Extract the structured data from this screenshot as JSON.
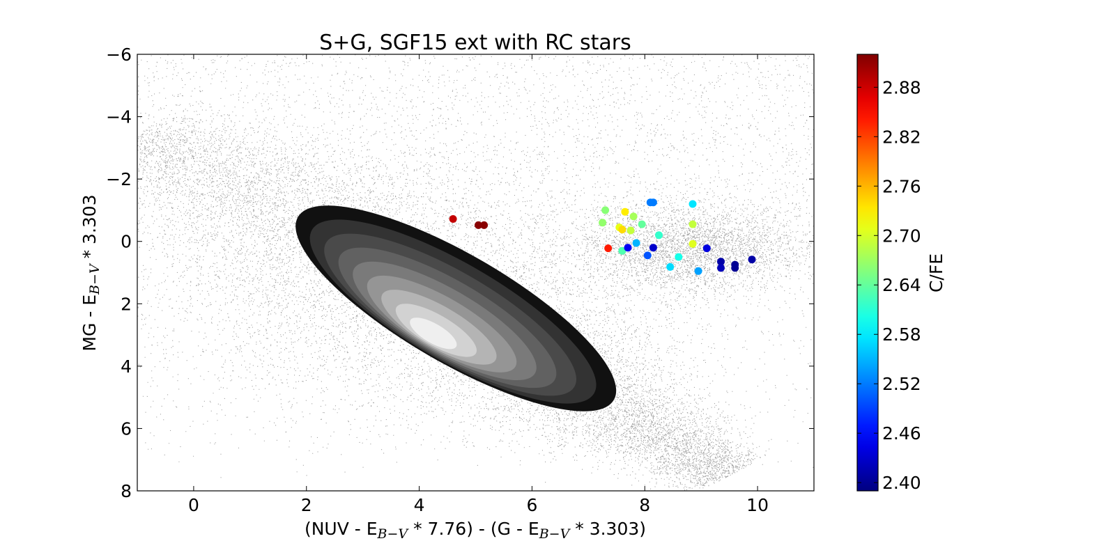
{
  "chart_data": {
    "type": "scatter",
    "title": "S+G, SGF15 ext with RC stars",
    "xlabel": {
      "parts": [
        {
          "t": "(NUV - E"
        },
        {
          "t": "B−V",
          "sub": true
        },
        {
          "t": " * 7.76) - (G - E"
        },
        {
          "t": "B−V",
          "sub": true
        },
        {
          "t": " * 3.303)"
        }
      ]
    },
    "ylabel": {
      "parts": [
        {
          "t": "MG - E"
        },
        {
          "t": "B−V",
          "sub": true
        },
        {
          "t": " * 3.303"
        }
      ]
    },
    "xlim": [
      -1,
      11
    ],
    "ylim": [
      8,
      -6
    ],
    "y_inverted": true,
    "xticks": [
      0,
      2,
      4,
      6,
      8,
      10
    ],
    "yticks": [
      -6,
      -4,
      -2,
      0,
      2,
      4,
      6,
      8
    ],
    "xtick_labels": [
      "0",
      "2",
      "4",
      "6",
      "8",
      "10"
    ],
    "ytick_labels": [
      "−6",
      "−4",
      "−2",
      "0",
      "2",
      "4",
      "6",
      "8"
    ],
    "grid": false,
    "colorbar": {
      "label": "C/FE",
      "range": [
        2.39,
        2.92
      ],
      "ticks": [
        2.4,
        2.46,
        2.52,
        2.58,
        2.64,
        2.7,
        2.76,
        2.82,
        2.88
      ],
      "tick_labels": [
        "2.40",
        "2.46",
        "2.52",
        "2.58",
        "2.64",
        "2.70",
        "2.76",
        "2.82",
        "2.88"
      ],
      "colormap": "jet"
    },
    "background_density": {
      "description_free": true,
      "main_sequence_axis": {
        "from": [
          -1,
          -3.5
        ],
        "to": [
          9.5,
          7.5
        ]
      },
      "field_spread": 1.8,
      "contour_levels": 8,
      "contour_colors": [
        "#111111",
        "#333333",
        "#4a4a4a",
        "#616161",
        "#7a7a7a",
        "#959595",
        "#b4b4b4",
        "#d2d2d2",
        "#efefef"
      ],
      "core_center": [
        4.6,
        3.0
      ]
    },
    "rc_series": [
      {
        "x": 4.6,
        "y": -0.72,
        "c": 2.885
      },
      {
        "x": 5.05,
        "y": -0.52,
        "c": 2.915
      },
      {
        "x": 5.15,
        "y": -0.52,
        "c": 2.915
      },
      {
        "x": 7.35,
        "y": 0.22,
        "c": 2.84
      },
      {
        "x": 7.3,
        "y": -1.0,
        "c": 2.66
      },
      {
        "x": 7.25,
        "y": -0.6,
        "c": 2.665
      },
      {
        "x": 7.55,
        "y": -0.45,
        "c": 2.71
      },
      {
        "x": 7.6,
        "y": -0.38,
        "c": 2.74
      },
      {
        "x": 7.65,
        "y": -0.95,
        "c": 2.73
      },
      {
        "x": 7.75,
        "y": -0.35,
        "c": 2.69
      },
      {
        "x": 7.8,
        "y": -0.8,
        "c": 2.675
      },
      {
        "x": 7.95,
        "y": -0.55,
        "c": 2.64
      },
      {
        "x": 7.6,
        "y": 0.3,
        "c": 2.63
      },
      {
        "x": 7.7,
        "y": 0.2,
        "c": 2.45
      },
      {
        "x": 7.85,
        "y": 0.05,
        "c": 2.55
      },
      {
        "x": 8.05,
        "y": 0.45,
        "c": 2.5
      },
      {
        "x": 8.15,
        "y": 0.2,
        "c": 2.43
      },
      {
        "x": 8.1,
        "y": -1.25,
        "c": 2.52
      },
      {
        "x": 8.15,
        "y": -1.25,
        "c": 2.52
      },
      {
        "x": 8.25,
        "y": -0.2,
        "c": 2.615
      },
      {
        "x": 8.45,
        "y": 0.82,
        "c": 2.57
      },
      {
        "x": 8.6,
        "y": 0.5,
        "c": 2.6
      },
      {
        "x": 8.85,
        "y": -1.2,
        "c": 2.575
      },
      {
        "x": 8.85,
        "y": -0.55,
        "c": 2.69
      },
      {
        "x": 8.85,
        "y": 0.08,
        "c": 2.705
      },
      {
        "x": 8.95,
        "y": 0.95,
        "c": 2.54
      },
      {
        "x": 9.1,
        "y": 0.22,
        "c": 2.44
      },
      {
        "x": 9.35,
        "y": 0.65,
        "c": 2.41
      },
      {
        "x": 9.35,
        "y": 0.85,
        "c": 2.42
      },
      {
        "x": 9.6,
        "y": 0.75,
        "c": 2.4
      },
      {
        "x": 9.6,
        "y": 0.85,
        "c": 2.4
      },
      {
        "x": 9.9,
        "y": 0.58,
        "c": 2.41
      }
    ]
  }
}
